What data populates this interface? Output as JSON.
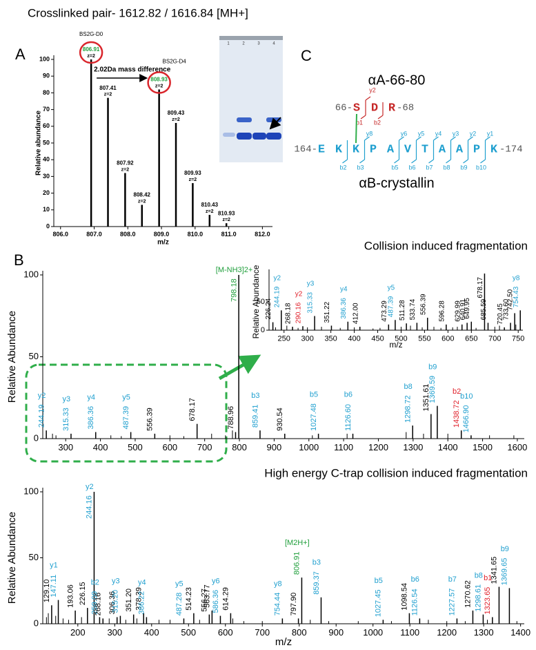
{
  "figure": {
    "title": "Crosslinked pair- 1612.82 / 1616.84 [MH+]",
    "panel_labels": [
      "A",
      "B",
      "C"
    ]
  },
  "chart_data": [
    {
      "type": "spectrum",
      "xlabel": "m/z",
      "ylabel": "Relative abundance",
      "color": "#000000",
      "x": [
        806.91,
        807.41,
        807.92,
        808.42,
        808.93,
        809.43,
        809.93,
        810.43,
        810.93
      ],
      "x_labels": [
        "806.91",
        "807.41",
        "807.92",
        "808.42",
        "808.93",
        "809.43",
        "809.93",
        "810.43",
        "810.93"
      ],
      "values": [
        100,
        77,
        32,
        13,
        82,
        62,
        26,
        7,
        2
      ],
      "peak_notes": [
        "z=2",
        "z=2",
        "z=2",
        "z=2",
        "z=2",
        "z=2",
        "z=2",
        "z=2",
        "z=2"
      ],
      "label_colors": [
        "#1e9e3a",
        "#000000",
        "#000000",
        "#000000",
        "#1e9e3a",
        "#000000",
        "#000000",
        "#000000",
        "#000000"
      ],
      "xlim": [
        805.8,
        812.3
      ],
      "xticks": [
        {
          "value": 806,
          "label": "806.0"
        },
        {
          "value": 807,
          "label": "807.0"
        },
        {
          "value": 808,
          "label": "808.0"
        },
        {
          "value": 809,
          "label": "809.0"
        },
        {
          "value": 810,
          "label": "810.0"
        },
        {
          "value": 811,
          "label": "811.0"
        },
        {
          "value": 812,
          "label": "812.0"
        }
      ],
      "ylim": [
        0,
        100
      ],
      "yticks": [
        0,
        10,
        20,
        30,
        40,
        50,
        60,
        70,
        80,
        90,
        100
      ],
      "annotations": [
        "BS2G-D0",
        "BS2G-D4",
        "2.02Da mass difference"
      ],
      "gel": {
        "lanes": [
          "1",
          "2",
          "3",
          "4"
        ]
      }
    },
    {
      "type": "spectrum",
      "title": "Collision induced fragmentation",
      "ylabel": "Relative Abundance",
      "color": "#000000",
      "x": [
        244.19,
        315.33,
        386.36,
        487.39,
        556.39,
        678.17,
        788.96,
        798.18,
        859.41,
        930.54,
        1027.48,
        1126.6,
        1298.72,
        1351.61,
        1369.59,
        1438.72,
        1466.9
      ],
      "x_labels": [
        "244.19",
        "315.33",
        "386.36",
        "487.39",
        "556.39",
        "678.17",
        "788.96",
        "798.18",
        "859.41",
        "930.54",
        "1027.48",
        "1126.60",
        "1298.72",
        "1351.61",
        "1369.59",
        "1438.72",
        "1466.90"
      ],
      "values": [
        5,
        3,
        4,
        4,
        3,
        9,
        4,
        100,
        5,
        3,
        3,
        3,
        8,
        15,
        20,
        5,
        2
      ],
      "ions": [
        "y2",
        "y3",
        "y4",
        "y5",
        null,
        null,
        null,
        "[M-NH3]2+",
        "b3",
        null,
        "b5",
        "b6",
        "b8",
        null,
        "b9",
        "b2",
        "b10"
      ],
      "label_colors": [
        "#1f9fcf",
        "#1f9fcf",
        "#1f9fcf",
        "#1f9fcf",
        "#000000",
        "#000000",
        "#000000",
        "#1e9e3a",
        "#1f9fcf",
        "#000000",
        "#1f9fcf",
        "#1f9fcf",
        "#1f9fcf",
        "#000000",
        "#1f9fcf",
        "#e0202a",
        "#1f9fcf"
      ],
      "minor_x": [
        262,
        272,
        430,
        460,
        600,
        640,
        720,
        760,
        780,
        1010,
        1110,
        1280,
        1330,
        1400,
        1520,
        1590
      ],
      "minor_values": [
        3,
        2,
        2,
        1.5,
        2,
        1.5,
        3,
        2,
        5,
        2,
        3,
        4,
        3,
        3,
        2,
        2
      ],
      "xlim": [
        234,
        1620
      ],
      "xticks": [
        300,
        400,
        500,
        600,
        700,
        800,
        900,
        1000,
        1100,
        1200,
        1300,
        1400,
        1500,
        1600
      ],
      "ylim": [
        0,
        100
      ],
      "yticks": [
        0,
        50,
        100
      ]
    },
    {
      "type": "spectrum",
      "xlabel": "m/z",
      "ylabel": "Relative Abundance",
      "color": "#000000",
      "x": [
        226.24,
        244.19,
        268.18,
        290.16,
        315.33,
        351.22,
        386.36,
        412.0,
        473.29,
        487.39,
        511.28,
        533.74,
        556.39,
        596.28,
        629.99,
        640.91,
        649.95,
        678.17,
        685.59,
        720.45,
        733.6,
        742.5,
        754.43
      ],
      "x_labels": [
        "226.24",
        "244.19",
        "268.18",
        "290.16",
        "315.33",
        "351.22",
        "386.36",
        "412.00",
        "473.29",
        "487.39",
        "511.28",
        "533.74",
        "556.39",
        "596.28",
        "629.99",
        "640.91",
        "649.95",
        "678.17",
        "685.59",
        "720.45",
        "733.60",
        "742.50",
        "754.43"
      ],
      "values": [
        14,
        35,
        6,
        7,
        25,
        8,
        15,
        6,
        10,
        18,
        12,
        13,
        22,
        10,
        10,
        13,
        15,
        100,
        13,
        5,
        13,
        30,
        35
      ],
      "ions": [
        null,
        "y2",
        null,
        "y2",
        "y3",
        null,
        "y4",
        null,
        null,
        "y5",
        null,
        null,
        null,
        null,
        null,
        null,
        null,
        null,
        null,
        null,
        null,
        null,
        "y8"
      ],
      "label_colors": [
        "#000000",
        "#1f9fcf",
        "#000000",
        "#e0202a",
        "#1f9fcf",
        "#000000",
        "#1f9fcf",
        "#000000",
        "#000000",
        "#1f9fcf",
        "#000000",
        "#000000",
        "#000000",
        "#000000",
        "#000000",
        "#000000",
        "#000000",
        "#000000",
        "#000000",
        "#000000",
        "#000000",
        "#000000",
        "#1f9fcf"
      ],
      "minor_x": [
        232,
        256,
        280,
        300,
        330,
        370,
        400,
        440,
        455,
        500,
        520,
        545,
        570,
        585,
        610,
        620,
        660,
        700,
        710,
        745
      ],
      "minor_values": [
        5,
        8,
        4,
        5,
        6,
        4,
        5,
        3,
        4,
        6,
        8,
        5,
        6,
        4,
        5,
        6,
        4,
        6,
        8,
        10
      ],
      "xlim": [
        218,
        760
      ],
      "xticks": [
        250,
        300,
        350,
        400,
        450,
        500,
        550,
        600,
        650,
        700,
        750
      ],
      "ylim": [
        0,
        100
      ],
      "yticks": [
        0,
        50
      ]
    },
    {
      "type": "spectrum",
      "title": "High energy C-trap collision induced fragmentation",
      "xlabel": "m/z",
      "ylabel": "Relative Abundance",
      "color": "#000000",
      "x": [
        129.1,
        147.11,
        193.06,
        226.15,
        244.16,
        259.09,
        268.16,
        306.36,
        315.2,
        351.2,
        378.39,
        386.22,
        487.28,
        514.23,
        556.27,
        563.77,
        586.36,
        614.29,
        754.44,
        797.9,
        806.91,
        859.37,
        1027.45,
        1098.54,
        1126.54,
        1227.57,
        1270.62,
        1298.61,
        1323.65,
        1341.65,
        1369.65
      ],
      "x_labels": [
        "129.10",
        "147.11",
        "193.06",
        "226.15",
        "244.16",
        "259.09",
        "268.16",
        "306.36",
        "315.20",
        "351.20",
        "378.39",
        "386.22",
        "487.28",
        "514.23",
        "556.27",
        "563.77",
        "586.36",
        "614.29",
        "754.44",
        "797.90",
        "806.91",
        "859.37",
        "1027.45",
        "1098.54",
        "1126.54",
        "1227.57",
        "1270.62",
        "1298.61",
        "1323.65",
        "1341.65",
        "1369.65"
      ],
      "values": [
        14,
        18,
        10,
        12,
        100,
        5,
        4,
        5,
        6,
        7,
        8,
        5,
        4,
        8,
        7,
        10,
        6,
        8,
        4,
        4,
        35,
        20,
        3,
        8,
        4,
        4,
        10,
        7,
        5,
        28,
        27
      ],
      "ions": [
        null,
        "y1",
        null,
        null,
        "y2",
        "b2",
        null,
        null,
        "y3",
        null,
        null,
        "y4",
        "y5",
        null,
        null,
        null,
        "y6",
        null,
        "y8",
        null,
        "[M2H+]",
        "b3",
        "b5",
        null,
        "b6",
        "b7",
        null,
        "b8",
        "b1",
        null,
        "b9"
      ],
      "label_colors": [
        "#000000",
        "#1f9fcf",
        "#000000",
        "#000000",
        "#1f9fcf",
        "#1f9fcf",
        "#000000",
        "#000000",
        "#1f9fcf",
        "#000000",
        "#000000",
        "#1f9fcf",
        "#1f9fcf",
        "#000000",
        "#000000",
        "#000000",
        "#1f9fcf",
        "#000000",
        "#1f9fcf",
        "#000000",
        "#1e9e3a",
        "#1f9fcf",
        "#1f9fcf",
        "#000000",
        "#1f9fcf",
        "#1f9fcf",
        "#000000",
        "#1f9fcf",
        "#e0202a",
        "#000000",
        "#1f9fcf"
      ],
      "minor_x": [
        115,
        120,
        140,
        160,
        175,
        210,
        285,
        330,
        360,
        420,
        450,
        530,
        620,
        650,
        700,
        830,
        880,
        960,
        1050,
        1150,
        1200,
        1250,
        1310,
        1390
      ],
      "minor_values": [
        5,
        8,
        6,
        4,
        3,
        5,
        4,
        3,
        4,
        3,
        3,
        3,
        4,
        2,
        2,
        3,
        2,
        2,
        2,
        3,
        2,
        2,
        3,
        2
      ],
      "xlim": [
        105,
        1410
      ],
      "xticks": [
        200,
        300,
        400,
        500,
        600,
        700,
        800,
        900,
        1000,
        1100,
        1200,
        1300,
        1400
      ],
      "ylim": [
        0,
        100
      ],
      "yticks": [
        0,
        50,
        100
      ]
    }
  ],
  "diagram": {
    "top_title": "αA-66-80",
    "top_start": "66-",
    "top_residues": [
      "S",
      "D",
      "R"
    ],
    "top_end": "-68",
    "top_ions": [
      "y2",
      "b1",
      "b2"
    ],
    "bottom_start": "164-",
    "bottom_residues": [
      "E",
      "K",
      "K",
      "P",
      "A",
      "V",
      "T",
      "A",
      "A",
      "P",
      "K"
    ],
    "bottom_end": "-174",
    "y_ions": [
      "y8",
      "y6",
      "y5",
      "y4",
      "y3",
      "y2",
      "y1"
    ],
    "b_ions": [
      "b2",
      "b3",
      "b5",
      "b6",
      "b7",
      "b8",
      "b9",
      "b10"
    ],
    "bottom_title": "αB-crystallin"
  }
}
